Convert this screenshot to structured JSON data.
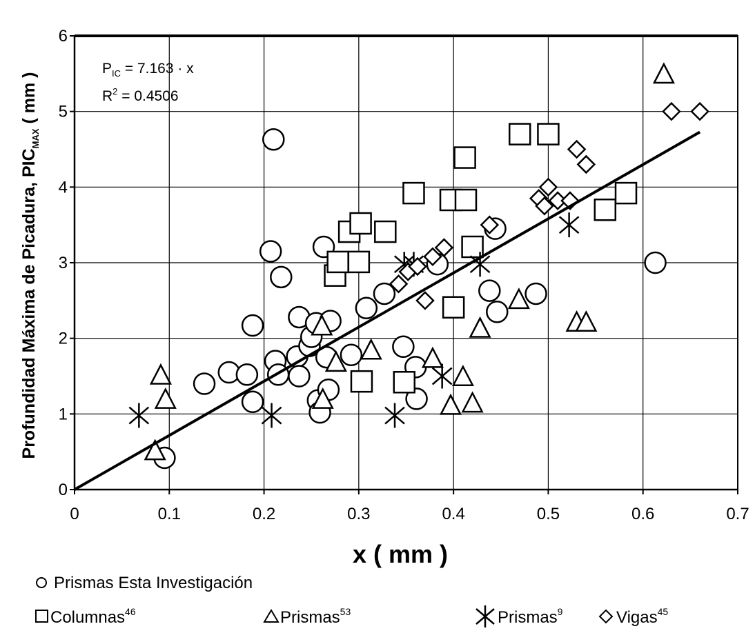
{
  "chart_data": {
    "type": "scatter",
    "xlabel": "x  ( mm )",
    "ylabel": {
      "prefix": "Profundidad Máxima de Picadura, PIC",
      "subscript": "MAX",
      "suffix": "  ( mm )"
    },
    "xlim": [
      0,
      0.7
    ],
    "ylim": [
      0,
      6
    ],
    "x_ticks": [
      "0",
      "0.1",
      "0.2",
      "0.3",
      "0.4",
      "0.5",
      "0.6",
      "0.7"
    ],
    "y_ticks": [
      "0",
      "1",
      "2",
      "3",
      "4",
      "5",
      "6"
    ],
    "grid": true,
    "annotation": {
      "equation_lhs": "P",
      "equation_sub": "IC",
      "equation_rhs": " = 7.163 · x",
      "r2_lhs": "R",
      "r2_sup": "2",
      "r2_rhs": " = 0.4506"
    },
    "fit": {
      "slope": 7.163,
      "x_range": [
        0,
        0.66
      ]
    },
    "series": [
      {
        "name": "Prismas Esta Investigación",
        "marker": "circle",
        "points": [
          [
            0.095,
            0.42
          ],
          [
            0.137,
            1.4
          ],
          [
            0.163,
            1.55
          ],
          [
            0.182,
            1.52
          ],
          [
            0.188,
            1.16
          ],
          [
            0.188,
            2.17
          ],
          [
            0.207,
            3.15
          ],
          [
            0.21,
            4.63
          ],
          [
            0.212,
            1.7
          ],
          [
            0.215,
            1.52
          ],
          [
            0.218,
            2.81
          ],
          [
            0.235,
            1.76
          ],
          [
            0.237,
            1.5
          ],
          [
            0.237,
            2.28
          ],
          [
            0.248,
            1.9
          ],
          [
            0.25,
            2.02
          ],
          [
            0.255,
            2.2
          ],
          [
            0.257,
            1.18
          ],
          [
            0.259,
            1.02
          ],
          [
            0.263,
            3.21
          ],
          [
            0.266,
            1.75
          ],
          [
            0.27,
            2.23
          ],
          [
            0.268,
            1.32
          ],
          [
            0.292,
            1.78
          ],
          [
            0.308,
            2.4
          ],
          [
            0.327,
            2.59
          ],
          [
            0.347,
            1.89
          ],
          [
            0.36,
            1.62
          ],
          [
            0.361,
            1.2
          ],
          [
            0.383,
            2.98
          ],
          [
            0.438,
            2.63
          ],
          [
            0.444,
            3.45
          ],
          [
            0.446,
            2.35
          ],
          [
            0.487,
            2.59
          ],
          [
            0.613,
            3.0
          ]
        ]
      },
      {
        "name": "Columnas",
        "name_sup": "46",
        "marker": "square",
        "points": [
          [
            0.275,
            2.83
          ],
          [
            0.278,
            3.01
          ],
          [
            0.29,
            3.41
          ],
          [
            0.3,
            3.01
          ],
          [
            0.302,
            3.52
          ],
          [
            0.328,
            3.41
          ],
          [
            0.358,
            3.92
          ],
          [
            0.397,
            3.83
          ],
          [
            0.413,
            3.83
          ],
          [
            0.412,
            4.39
          ],
          [
            0.47,
            4.7
          ],
          [
            0.5,
            4.7
          ],
          [
            0.42,
            3.21
          ],
          [
            0.4,
            2.41
          ],
          [
            0.56,
            3.7
          ],
          [
            0.582,
            3.92
          ],
          [
            0.303,
            1.43
          ],
          [
            0.348,
            1.42
          ]
        ]
      },
      {
        "name": "Prismas",
        "name_sup": "53",
        "marker": "triangle",
        "points": [
          [
            0.085,
            0.5
          ],
          [
            0.091,
            1.5
          ],
          [
            0.096,
            1.18
          ],
          [
            0.261,
            2.15
          ],
          [
            0.262,
            1.18
          ],
          [
            0.276,
            1.67
          ],
          [
            0.313,
            1.83
          ],
          [
            0.378,
            1.72
          ],
          [
            0.397,
            1.1
          ],
          [
            0.41,
            1.48
          ],
          [
            0.42,
            1.13
          ],
          [
            0.428,
            2.12
          ],
          [
            0.469,
            2.5
          ],
          [
            0.53,
            2.2
          ],
          [
            0.54,
            2.2
          ],
          [
            0.622,
            5.48
          ]
        ]
      },
      {
        "name": "Prismas",
        "name_sup": "9",
        "marker": "star",
        "points": [
          [
            0.068,
            0.98
          ],
          [
            0.208,
            0.98
          ],
          [
            0.338,
            0.98
          ],
          [
            0.348,
            2.98
          ],
          [
            0.358,
            2.98
          ],
          [
            0.388,
            1.5
          ],
          [
            0.428,
            2.98
          ],
          [
            0.522,
            3.5
          ]
        ]
      },
      {
        "name": "Vigas",
        "name_sup": "45",
        "marker": "diamond",
        "points": [
          [
            0.342,
            2.72
          ],
          [
            0.352,
            2.88
          ],
          [
            0.362,
            2.95
          ],
          [
            0.37,
            2.5
          ],
          [
            0.378,
            3.08
          ],
          [
            0.39,
            3.2
          ],
          [
            0.438,
            3.5
          ],
          [
            0.49,
            3.85
          ],
          [
            0.496,
            3.75
          ],
          [
            0.5,
            4.0
          ],
          [
            0.51,
            3.82
          ],
          [
            0.523,
            3.82
          ],
          [
            0.53,
            4.5
          ],
          [
            0.54,
            4.3
          ],
          [
            0.63,
            5.0
          ],
          [
            0.66,
            5.0
          ]
        ]
      }
    ],
    "legend_position": "bottom"
  }
}
